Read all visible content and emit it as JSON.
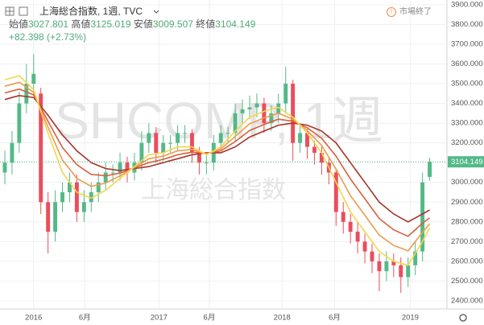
{
  "header": {
    "symbol": "上海総合指数, 1週, TVC",
    "labels": [
      "始値",
      "高値",
      "安値",
      "終値"
    ],
    "change": "+82.398 (+2.73%)",
    "status": "市場終了"
  },
  "watermark": {
    "symbol": "SHCOMP, 1週",
    "name": "上海総合指数"
  },
  "chart_data": {
    "type": "candlestick",
    "categories": [
      null,
      null,
      null,
      null,
      null,
      null,
      null,
      null,
      null,
      null,
      null,
      null,
      null,
      null,
      null,
      null,
      null,
      null,
      null,
      null,
      null,
      null,
      null,
      null,
      null,
      null,
      null,
      null,
      null,
      null,
      null,
      null,
      null,
      null,
      null,
      null,
      null,
      null,
      null,
      null,
      null,
      null,
      null,
      null,
      null,
      null,
      null,
      null,
      null,
      null,
      null,
      null,
      null,
      null,
      null,
      null,
      null,
      null,
      null,
      null
    ],
    "open": [
      3050,
      3100,
      3200,
      3400,
      3500,
      3450,
      2900,
      2750,
      2900,
      2950,
      3000,
      2850,
      2900,
      2950,
      3000,
      3050,
      3050,
      3100,
      3050,
      3100,
      3200,
      3250,
      3150,
      3200,
      3200,
      3250,
      3250,
      3150,
      3100,
      3100,
      3200,
      3250,
      3250,
      3350,
      3370,
      3380,
      3400,
      3300,
      3350,
      3400,
      3500,
      3200,
      3250,
      3180,
      3150,
      3100,
      3050,
      2850,
      2800,
      2750,
      2700,
      2650,
      2600,
      2550,
      2600,
      2580,
      2520,
      2580,
      2650,
      3027.801
    ],
    "high": [
      3160,
      3260,
      3460,
      3600,
      3650,
      3480,
      2950,
      2960,
      3000,
      3050,
      3040,
      2960,
      3000,
      3050,
      3100,
      3090,
      3150,
      3130,
      3150,
      3260,
      3300,
      3280,
      3240,
      3240,
      3290,
      3290,
      3270,
      3180,
      3140,
      3240,
      3290,
      3280,
      3400,
      3420,
      3440,
      3450,
      3430,
      3390,
      3450,
      3587,
      3520,
      3290,
      3270,
      3210,
      3180,
      3120,
      3070,
      2900,
      2840,
      2800,
      2740,
      2690,
      2640,
      2650,
      2640,
      2620,
      2620,
      2700,
      3050,
      3125.019
    ],
    "low": [
      2990,
      3040,
      3150,
      3350,
      3440,
      2840,
      2640,
      2700,
      2850,
      2900,
      2800,
      2800,
      2850,
      2900,
      2960,
      3000,
      3010,
      3000,
      3010,
      3060,
      3150,
      3100,
      3110,
      3150,
      3160,
      3200,
      3100,
      3040,
      3040,
      3060,
      3160,
      3200,
      3210,
      3300,
      3320,
      3330,
      3250,
      3260,
      3300,
      3350,
      3110,
      3150,
      3120,
      3090,
      3040,
      2990,
      2780,
      2740,
      2690,
      2640,
      2590,
      2540,
      2449,
      2500,
      2520,
      2440,
      2470,
      2530,
      2600,
      3009.507
    ],
    "close": [
      3100,
      3200,
      3400,
      3500,
      3550,
      2900,
      2750,
      2900,
      2950,
      3000,
      2850,
      2900,
      2950,
      3000,
      3050,
      3050,
      3100,
      3050,
      3100,
      3200,
      3250,
      3150,
      3200,
      3200,
      3250,
      3250,
      3150,
      3100,
      3100,
      3200,
      3250,
      3250,
      3350,
      3370,
      3380,
      3400,
      3300,
      3350,
      3400,
      3500,
      3200,
      3250,
      3180,
      3150,
      3100,
      3050,
      2850,
      2800,
      2750,
      2700,
      2650,
      2600,
      2550,
      2600,
      2580,
      2520,
      2580,
      2650,
      3000,
      3104.149
    ],
    "up_color": "#53b987",
    "down_color": "#eb4d5c",
    "series": [
      {
        "color": "#a8342a",
        "values": [
          3420,
          3430,
          3440,
          3435,
          3430,
          3385,
          3340,
          3290,
          3240,
          3200,
          3160,
          3130,
          3100,
          3085,
          3070,
          3065,
          3060,
          3065,
          3070,
          3075,
          3080,
          3090,
          3100,
          3110,
          3120,
          3130,
          3140,
          3145,
          3150,
          3150,
          3150,
          3165,
          3180,
          3205,
          3230,
          3245,
          3260,
          3275,
          3290,
          3295,
          3300,
          3295,
          3290,
          3275,
          3260,
          3230,
          3200,
          3150,
          3100,
          3050,
          3000,
          2950,
          2900,
          2870,
          2840,
          2820,
          2800,
          2820,
          2840,
          2860
        ]
      },
      {
        "color": "#d8603c",
        "values": [
          3453,
          3463,
          3473,
          3458,
          3443,
          3377,
          3310,
          3243,
          3177,
          3133,
          3090,
          3065,
          3040,
          3037,
          3033,
          3040,
          3047,
          3060,
          3073,
          3087,
          3100,
          3108,
          3117,
          3128,
          3140,
          3147,
          3153,
          3150,
          3147,
          3153,
          3160,
          3183,
          3207,
          3235,
          3263,
          3278,
          3293,
          3307,
          3320,
          3315,
          3310,
          3293,
          3277,
          3250,
          3223,
          3178,
          3133,
          3075,
          3017,
          2967,
          2917,
          2867,
          2817,
          2788,
          2760,
          2743,
          2727,
          2760,
          2793,
          2820
        ]
      },
      {
        "color": "#ee9b4c",
        "values": [
          3487,
          3497,
          3507,
          3482,
          3457,
          3368,
          3280,
          3197,
          3113,
          3067,
          3020,
          3000,
          2980,
          2988,
          2997,
          3015,
          3033,
          3055,
          3077,
          3098,
          3120,
          3127,
          3133,
          3147,
          3160,
          3163,
          3167,
          3155,
          3143,
          3157,
          3170,
          3202,
          3233,
          3265,
          3297,
          3312,
          3327,
          3338,
          3350,
          3335,
          3320,
          3292,
          3263,
          3225,
          3187,
          3127,
          3067,
          3000,
          2933,
          2883,
          2833,
          2783,
          2733,
          2707,
          2680,
          2667,
          2653,
          2700,
          2747,
          2790
        ]
      },
      {
        "color": "#f4d64c",
        "values": [
          3520,
          3530,
          3540,
          3505,
          3470,
          3360,
          3250,
          3150,
          3050,
          3000,
          2950,
          2935,
          2920,
          2940,
          2960,
          2990,
          3020,
          3050,
          3080,
          3110,
          3140,
          3145,
          3150,
          3165,
          3180,
          3180,
          3180,
          3160,
          3140,
          3160,
          3180,
          3220,
          3260,
          3295,
          3330,
          3345,
          3360,
          3370,
          3380,
          3355,
          3330,
          3290,
          3250,
          3200,
          3150,
          3075,
          3000,
          2925,
          2850,
          2800,
          2750,
          2700,
          2650,
          2625,
          2600,
          2590,
          2580,
          2640,
          2700,
          2770
        ]
      }
    ],
    "xlim": [
      -0.67,
      61.4
    ],
    "xticks": [
      {
        "value": 4,
        "label": "2016"
      },
      {
        "value": 11.1,
        "label": "6月"
      },
      {
        "value": 21.4,
        "label": "2017"
      },
      {
        "value": 28.4,
        "label": "6月"
      },
      {
        "value": 38.5,
        "label": "2018"
      },
      {
        "value": 45.8,
        "label": "6月"
      },
      {
        "value": 56.3,
        "label": "2019"
      }
    ],
    "ylim": [
      2359,
      3924
    ],
    "yticks": [
      {
        "value": 2400,
        "label": "2400.000"
      },
      {
        "value": 2500,
        "label": "2500.000"
      },
      {
        "value": 2600,
        "label": "2600.000"
      },
      {
        "value": 2700,
        "label": "2700.000"
      },
      {
        "value": 2800,
        "label": "2800.000"
      },
      {
        "value": 2900,
        "label": "2900.000"
      },
      {
        "value": 3000,
        "label": "3000.000"
      },
      {
        "value": 3100,
        "label": "3100.000"
      },
      {
        "value": 3200,
        "label": "3200.000"
      },
      {
        "value": 3300,
        "label": "3300.000"
      },
      {
        "value": 3400,
        "label": "3400.000"
      },
      {
        "value": 3500,
        "label": "3500.000"
      },
      {
        "value": 3600,
        "label": "3600.000"
      },
      {
        "value": 3700,
        "label": "3700.000"
      },
      {
        "value": 3800,
        "label": "3800.000"
      },
      {
        "value": 3900,
        "label": "3900.000"
      }
    ],
    "grid": true
  }
}
